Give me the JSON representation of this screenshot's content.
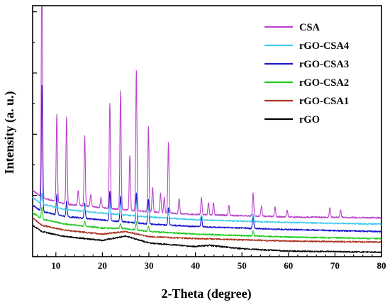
{
  "chart_data": {
    "type": "line",
    "title": "",
    "xlabel": "2-Theta (degree)",
    "ylabel": "Intensity (a. u.)",
    "xlim": [
      5,
      80
    ],
    "xticks": [
      10,
      20,
      30,
      40,
      50,
      60,
      70,
      80
    ],
    "y_tick_labels_shown": false,
    "grid": false,
    "legend_position": "top-right",
    "series": [
      {
        "name": "CSA",
        "color": "#bb44cc",
        "baseline": [
          [
            5,
            0.265
          ],
          [
            7,
            0.235
          ],
          [
            12,
            0.21
          ],
          [
            20,
            0.195
          ],
          [
            30,
            0.178
          ],
          [
            40,
            0.168
          ],
          [
            60,
            0.158
          ],
          [
            80,
            0.155
          ]
        ],
        "peaks": [
          [
            7.0,
            1.0
          ],
          [
            10.2,
            0.35
          ],
          [
            12.3,
            0.35
          ],
          [
            14.8,
            0.06
          ],
          [
            16.2,
            0.28
          ],
          [
            17.5,
            0.05
          ],
          [
            19.7,
            0.04
          ],
          [
            21.6,
            0.42
          ],
          [
            23.9,
            0.47
          ],
          [
            25.9,
            0.22
          ],
          [
            27.3,
            0.56
          ],
          [
            29.9,
            0.34
          ],
          [
            30.8,
            0.1
          ],
          [
            32.5,
            0.08
          ],
          [
            33.3,
            0.06
          ],
          [
            34.2,
            0.28
          ],
          [
            36.5,
            0.06
          ],
          [
            41.3,
            0.07
          ],
          [
            42.8,
            0.05
          ],
          [
            43.9,
            0.05
          ],
          [
            47.2,
            0.04
          ],
          [
            52.4,
            0.09
          ],
          [
            54.2,
            0.04
          ],
          [
            57.1,
            0.04
          ],
          [
            59.7,
            0.03
          ],
          [
            68.9,
            0.04
          ],
          [
            71.2,
            0.03
          ]
        ]
      },
      {
        "name": "rGO-CSA4",
        "color": "#44ccee",
        "baseline": [
          [
            5,
            0.235
          ],
          [
            7,
            0.21
          ],
          [
            12,
            0.188
          ],
          [
            20,
            0.173
          ],
          [
            30,
            0.158
          ],
          [
            40,
            0.147
          ],
          [
            60,
            0.136
          ],
          [
            80,
            0.13
          ]
        ],
        "peaks": [
          [
            7.0,
            0.04
          ],
          [
            16.2,
            0.02
          ],
          [
            21.6,
            0.03
          ],
          [
            23.9,
            0.04
          ],
          [
            27.3,
            0.05
          ],
          [
            29.9,
            0.03
          ],
          [
            34.2,
            0.02
          ],
          [
            41.3,
            0.02
          ],
          [
            52.4,
            0.03
          ]
        ]
      },
      {
        "name": "rGO-CSA3",
        "color": "#1a1acc",
        "baseline": [
          [
            5,
            0.205
          ],
          [
            7,
            0.18
          ],
          [
            12,
            0.16
          ],
          [
            20,
            0.146
          ],
          [
            30,
            0.13
          ],
          [
            40,
            0.12
          ],
          [
            60,
            0.108
          ],
          [
            80,
            0.1
          ]
        ],
        "peaks": [
          [
            7.0,
            0.5
          ],
          [
            10.2,
            0.08
          ],
          [
            12.3,
            0.06
          ],
          [
            16.2,
            0.06
          ],
          [
            21.6,
            0.12
          ],
          [
            23.9,
            0.1
          ],
          [
            27.3,
            0.12
          ],
          [
            29.9,
            0.1
          ],
          [
            34.2,
            0.07
          ],
          [
            41.3,
            0.04
          ],
          [
            52.4,
            0.05
          ]
        ]
      },
      {
        "name": "rGO-CSA2",
        "color": "#22cc22",
        "baseline": [
          [
            5,
            0.175
          ],
          [
            7,
            0.15
          ],
          [
            12,
            0.13
          ],
          [
            20,
            0.114
          ],
          [
            25,
            0.112
          ],
          [
            30,
            0.1
          ],
          [
            40,
            0.09
          ],
          [
            60,
            0.078
          ],
          [
            80,
            0.072
          ]
        ],
        "peaks": [
          [
            7.0,
            0.05
          ],
          [
            16.2,
            0.02
          ],
          [
            23.9,
            0.02
          ],
          [
            27.3,
            0.03
          ],
          [
            29.9,
            0.02
          ],
          [
            52.4,
            0.02
          ]
        ]
      },
      {
        "name": "rGO-CSA1",
        "color": "#aa3322",
        "baseline": [
          [
            5,
            0.155
          ],
          [
            7,
            0.125
          ],
          [
            12,
            0.105
          ],
          [
            20,
            0.09
          ],
          [
            25,
            0.1
          ],
          [
            30,
            0.08
          ],
          [
            40,
            0.072
          ],
          [
            60,
            0.062
          ],
          [
            80,
            0.058
          ]
        ],
        "peaks": []
      },
      {
        "name": "rGO",
        "color": "#000000",
        "baseline": [
          [
            5,
            0.125
          ],
          [
            7,
            0.1
          ],
          [
            12,
            0.08
          ],
          [
            20,
            0.065
          ],
          [
            25,
            0.082
          ],
          [
            30,
            0.055
          ],
          [
            40,
            0.04
          ],
          [
            43,
            0.045
          ],
          [
            50,
            0.032
          ],
          [
            60,
            0.022
          ],
          [
            80,
            0.018
          ]
        ],
        "peaks": []
      }
    ]
  }
}
